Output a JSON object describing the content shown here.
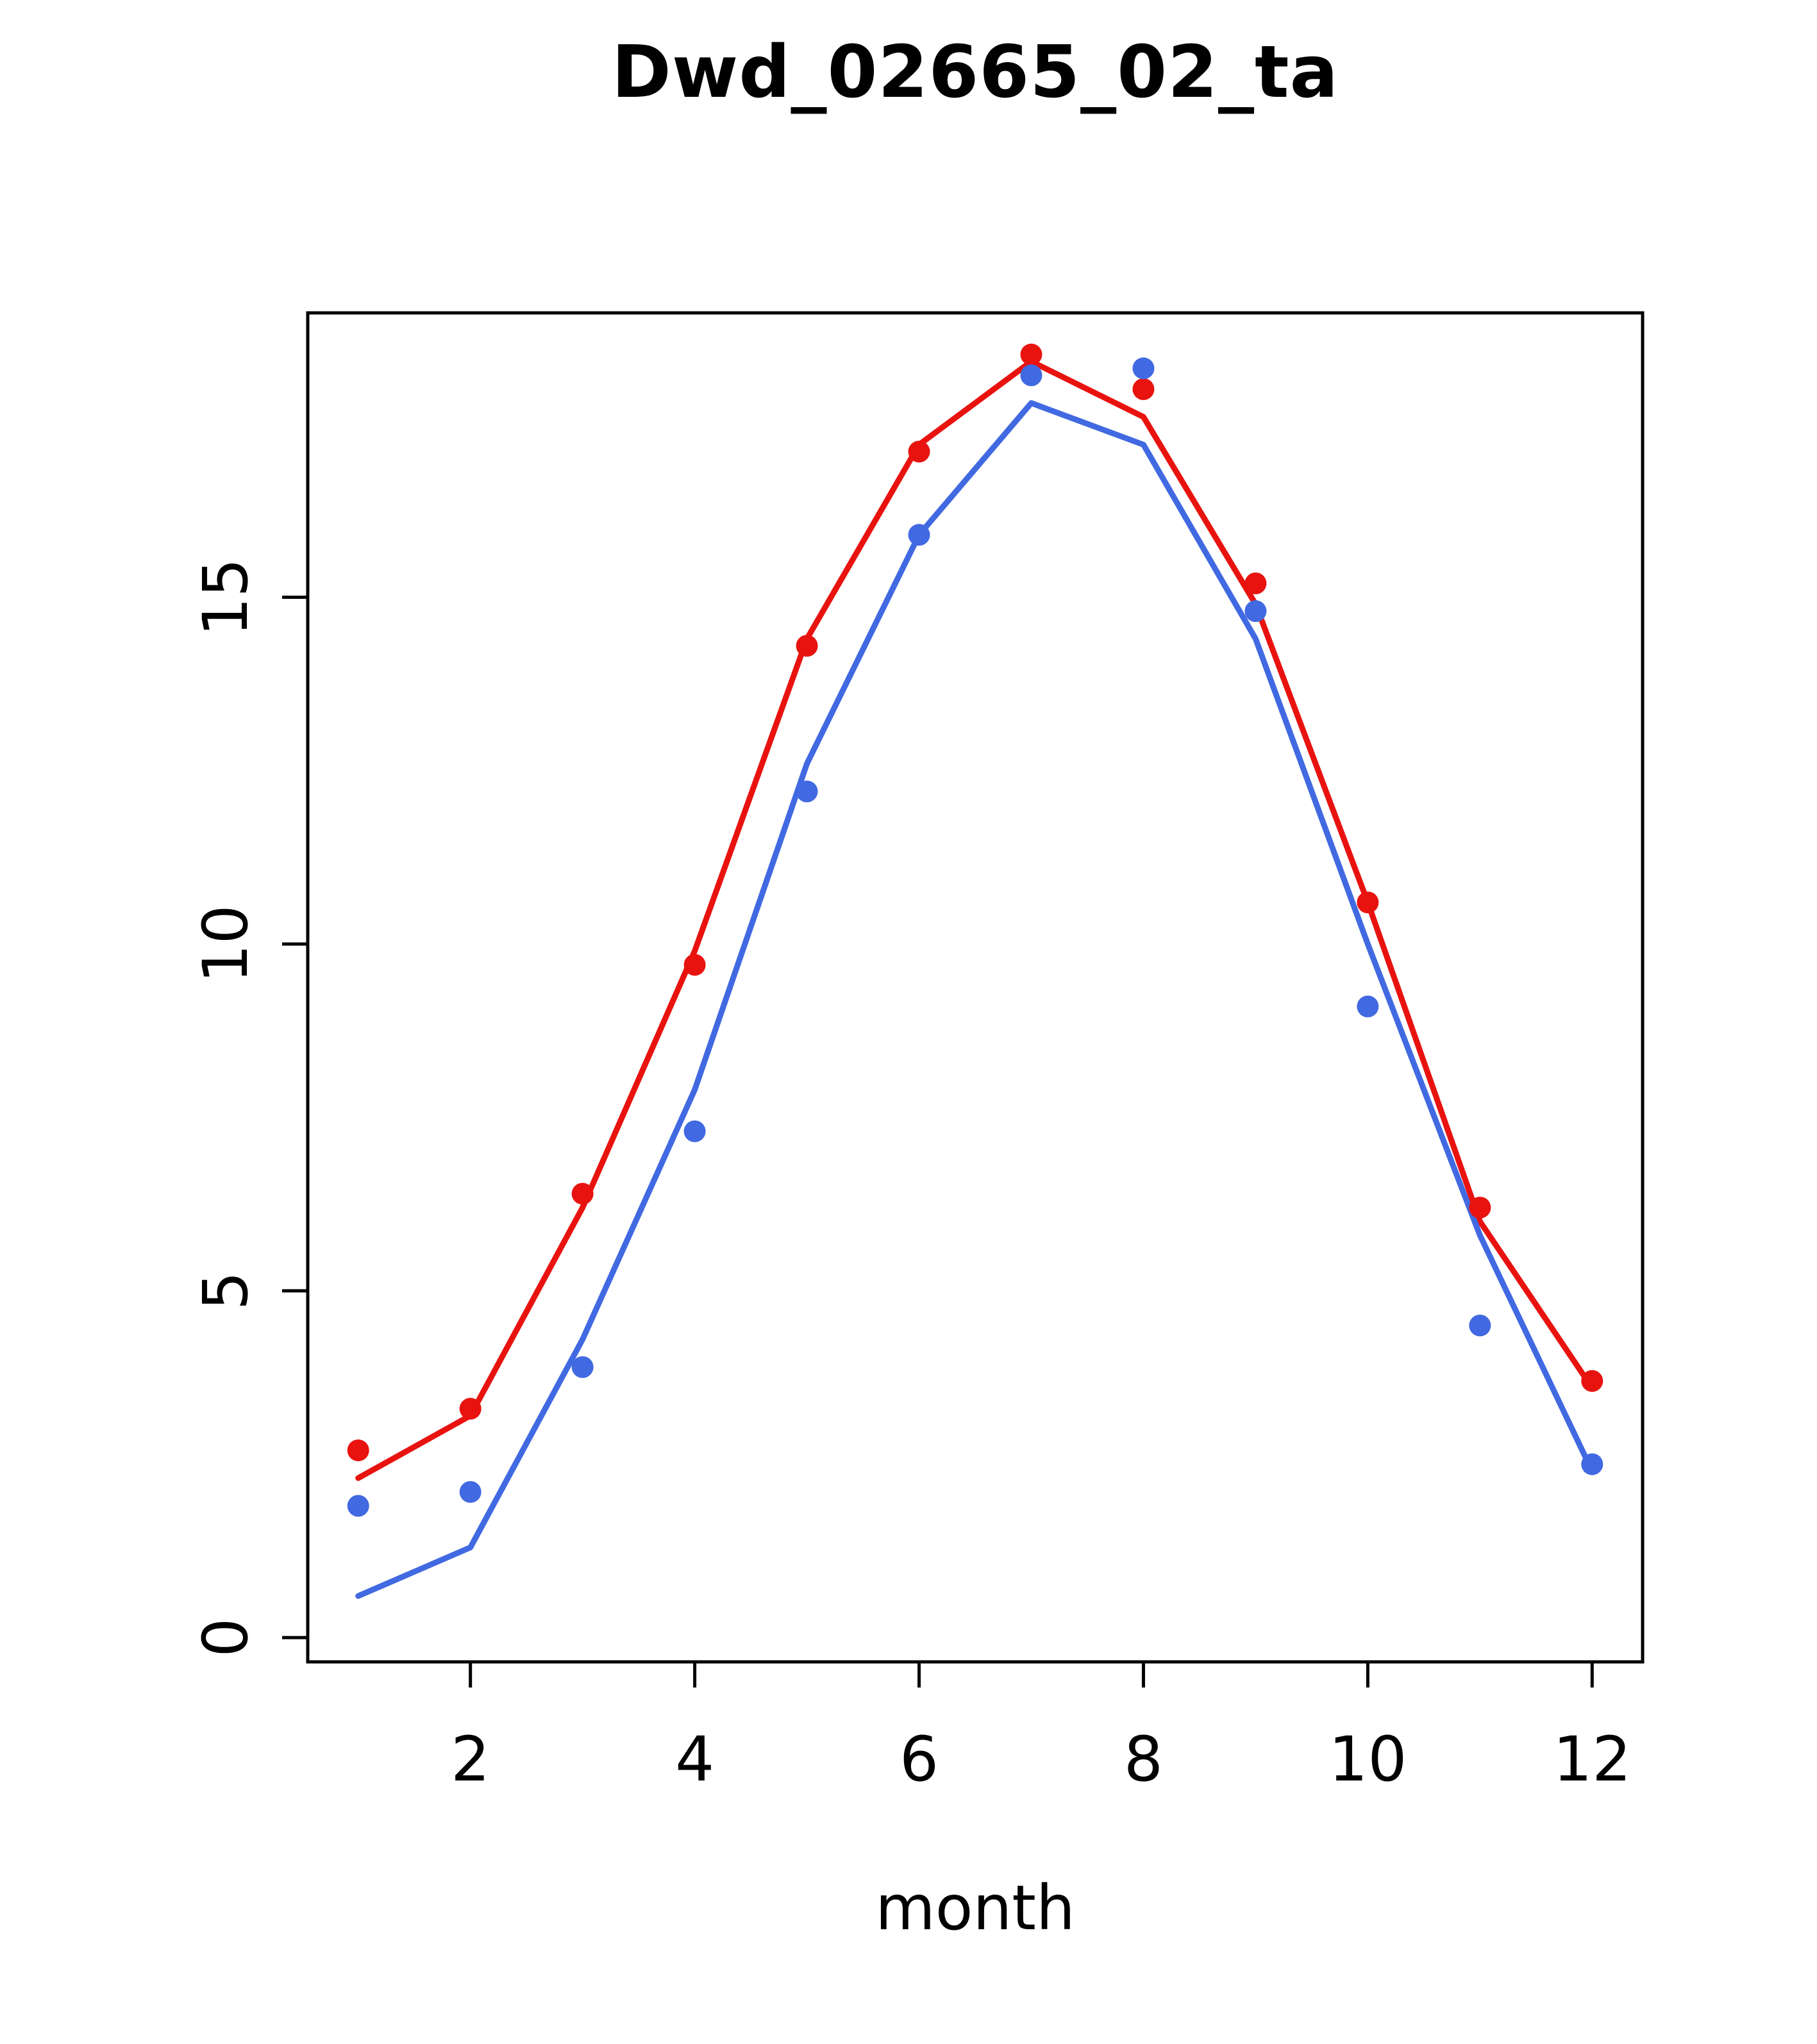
{
  "chart_data": {
    "type": "line",
    "title": "Dwd_02665_02_ta",
    "xlabel": "month",
    "ylabel": "",
    "x": [
      1,
      2,
      3,
      4,
      5,
      6,
      7,
      8,
      9,
      10,
      11,
      12
    ],
    "xticks": [
      2,
      4,
      6,
      8,
      10,
      12
    ],
    "yticks": [
      0,
      5,
      10,
      15
    ],
    "xlim": [
      0.55,
      12.45
    ],
    "ylim": [
      -0.35,
      19.1
    ],
    "grid": false,
    "legend": "none",
    "colors": {
      "red": "#e8130f",
      "blue": "#4169e1"
    },
    "series": [
      {
        "name": "red-line",
        "style": "line",
        "color": "#e8130f",
        "values": [
          2.3,
          3.2,
          6.2,
          9.9,
          14.4,
          17.2,
          18.4,
          17.6,
          14.9,
          10.6,
          6.0,
          3.6
        ]
      },
      {
        "name": "blue-line",
        "style": "line",
        "color": "#4169e1",
        "values": [
          0.6,
          1.3,
          4.3,
          7.9,
          12.6,
          15.9,
          17.8,
          17.2,
          14.4,
          10.0,
          5.8,
          2.4
        ]
      },
      {
        "name": "red-points",
        "style": "points",
        "color": "#e8130f",
        "values": [
          2.7,
          3.3,
          6.4,
          9.7,
          14.3,
          17.1,
          18.5,
          18.0,
          15.2,
          10.6,
          6.2,
          3.7
        ]
      },
      {
        "name": "blue-points",
        "style": "points",
        "color": "#4169e1",
        "values": [
          1.9,
          2.1,
          3.9,
          7.3,
          12.2,
          15.9,
          18.2,
          18.3,
          14.8,
          9.1,
          4.5,
          2.5
        ]
      }
    ]
  }
}
